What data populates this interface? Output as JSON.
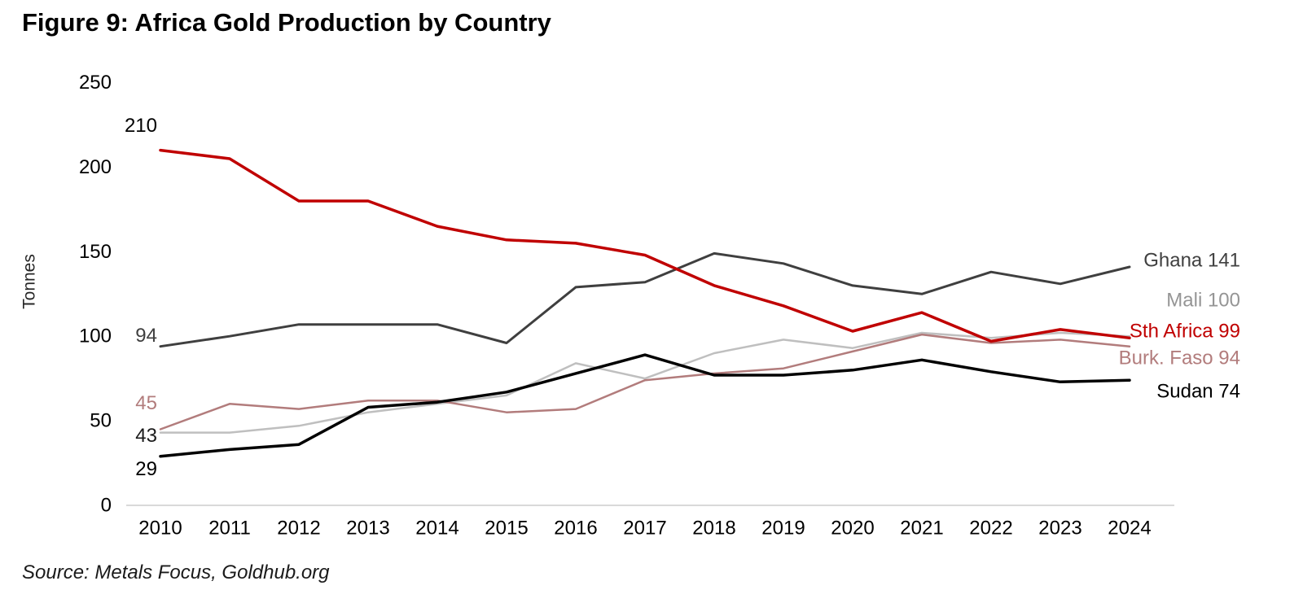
{
  "title": "Figure 9: Africa Gold Production by Country",
  "source": "Source: Metals Focus, Goldhub.org",
  "chart_data": {
    "type": "line",
    "title": "Figure 9: Africa Gold Production by Country",
    "xlabel": "",
    "ylabel": "Tonnes",
    "ylim": [
      0,
      250
    ],
    "yticks": [
      0,
      50,
      100,
      150,
      200,
      250
    ],
    "grid": false,
    "legend_position": "right-end-labels",
    "x": [
      2010,
      2011,
      2012,
      2013,
      2014,
      2015,
      2016,
      2017,
      2018,
      2019,
      2020,
      2021,
      2022,
      2023,
      2024
    ],
    "series": [
      {
        "name": "Sth Africa",
        "color": "#c00000",
        "label_color": "#c00000",
        "start_label": "210",
        "start_label_color": "#000000",
        "end_label": "Sth Africa 99",
        "values": [
          210,
          205,
          180,
          180,
          165,
          157,
          155,
          148,
          130,
          118,
          103,
          114,
          97,
          104,
          99
        ]
      },
      {
        "name": "Ghana",
        "color": "#3f3f3f",
        "label_color": "#404040",
        "start_label": "94",
        "start_label_color": "#3f3f3f",
        "end_label": "Ghana 141",
        "values": [
          94,
          100,
          107,
          107,
          107,
          96,
          129,
          132,
          149,
          143,
          130,
          125,
          138,
          131,
          141
        ]
      },
      {
        "name": "Mali",
        "color": "#bfbfbf",
        "label_color": "#959595",
        "start_label": "43",
        "start_label_color": "#1a1a1a",
        "end_label": "Mali 100",
        "values": [
          43,
          43,
          47,
          55,
          60,
          65,
          84,
          75,
          90,
          98,
          93,
          102,
          99,
          102,
          100
        ]
      },
      {
        "name": "Burk. Faso",
        "color": "#b27c7c",
        "label_color": "#b27c7c",
        "start_label": "45",
        "start_label_color": "#b27c7c",
        "end_label": "Burk. Faso 94",
        "values": [
          45,
          60,
          57,
          62,
          62,
          55,
          57,
          74,
          78,
          81,
          91,
          101,
          96,
          98,
          94
        ]
      },
      {
        "name": "Sudan",
        "color": "#000000",
        "label_color": "#000000",
        "start_label": "29",
        "start_label_color": "#000000",
        "end_label": "Sudan 74",
        "values": [
          29,
          33,
          36,
          58,
          61,
          67,
          78,
          89,
          77,
          77,
          80,
          86,
          79,
          73,
          74
        ]
      }
    ],
    "axis_color": "#d9d9d9",
    "tick_color": "#000000"
  }
}
